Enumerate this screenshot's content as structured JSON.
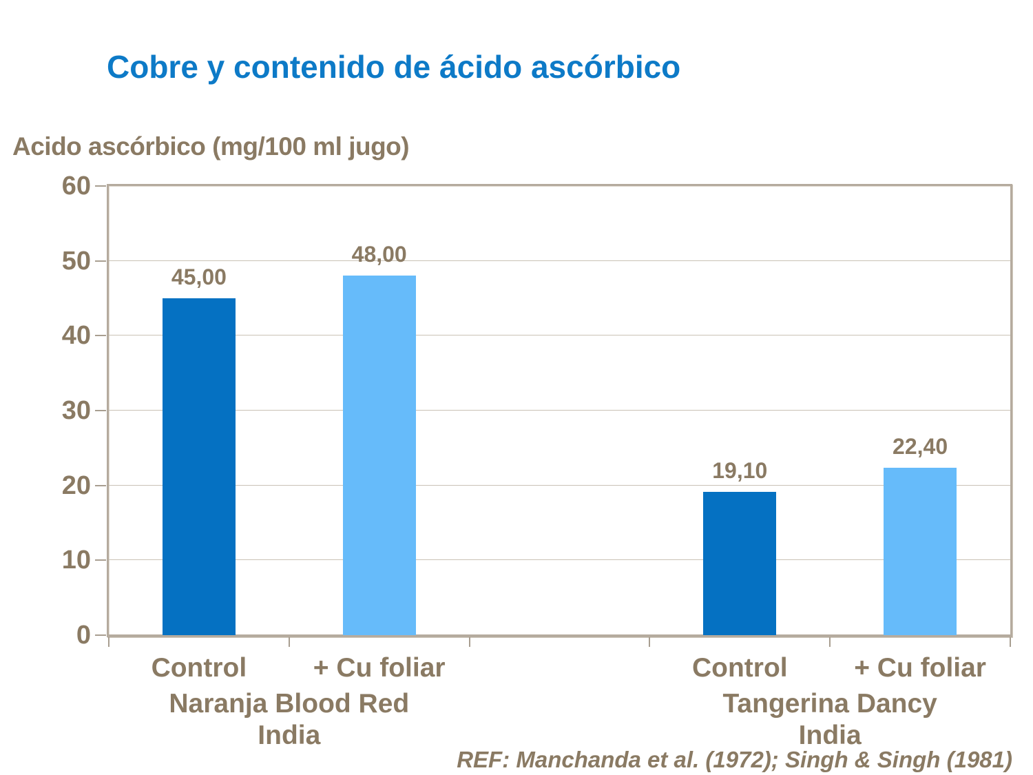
{
  "title": "Cobre y contenido de ácido ascórbico",
  "axis_title": "Acido ascórbico (mg/100 ml jugo)",
  "reference": "REF: Manchanda et al. (1972); Singh & Singh (1981)",
  "colors": {
    "title": "#0d7ac7",
    "text": "#8a7a63",
    "bar_dark": "#0571c2",
    "bar_light": "#66bbfa",
    "gridline": "#c9c1b5",
    "axis_border": "#b5ab9e",
    "tick": "#a89e90",
    "background": "#ffffff"
  },
  "chart_data": {
    "type": "bar",
    "title": "Cobre y contenido de ácido ascórbico",
    "ylabel": "Acido ascórbico (mg/100 ml jugo)",
    "ylim": [
      0,
      60
    ],
    "yticks": [
      0,
      10,
      20,
      30,
      40,
      50,
      60
    ],
    "grid": true,
    "legend": "none",
    "groups": [
      {
        "name_lines": [
          "Naranja Blood Red",
          "India"
        ],
        "bars": [
          {
            "category": "Control",
            "value": 45.0,
            "label": "45,00",
            "shade": "dark"
          },
          {
            "category": "+ Cu foliar",
            "value": 48.0,
            "label": "48,00",
            "shade": "light"
          }
        ]
      },
      {
        "name_lines": [
          "Tangerina Dancy",
          "India"
        ],
        "bars": [
          {
            "category": "Control",
            "value": 19.1,
            "label": "19,10",
            "shade": "dark"
          },
          {
            "category": "+ Cu foliar",
            "value": 22.4,
            "label": "22,40",
            "shade": "light"
          }
        ]
      }
    ]
  }
}
